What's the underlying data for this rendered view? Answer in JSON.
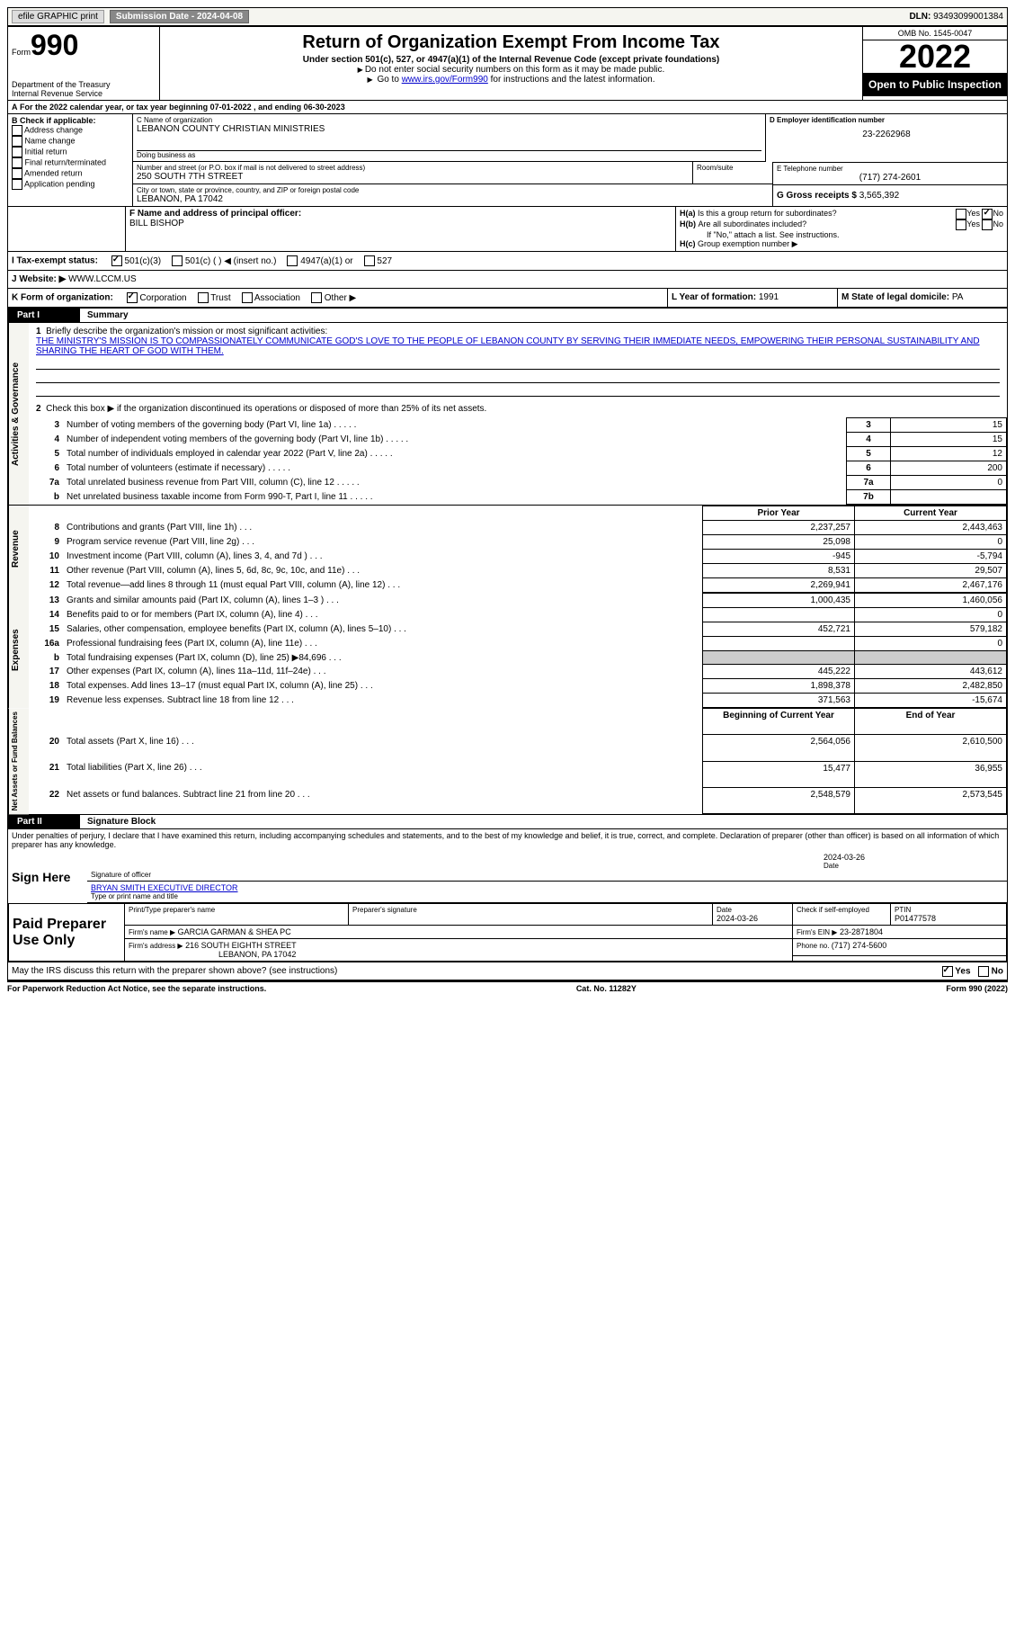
{
  "top_bar": {
    "efile": "efile GRAPHIC print",
    "submission_label": "Submission Date - ",
    "submission_date": "2024-04-08",
    "dln_label": "DLN: ",
    "dln": "93493099001384"
  },
  "header": {
    "form_word": "Form",
    "form_number": "990",
    "dept": "Department of the Treasury",
    "irs": "Internal Revenue Service",
    "title": "Return of Organization Exempt From Income Tax",
    "subtitle": "Under section 501(c), 527, or 4947(a)(1) of the Internal Revenue Code (except private foundations)",
    "note1": "Do not enter social security numbers on this form as it may be made public.",
    "note2_a": "Go to ",
    "note2_link": "www.irs.gov/Form990",
    "note2_b": " for instructions and the latest information.",
    "omb": "OMB No. 1545-0047",
    "year": "2022",
    "open": "Open to Public Inspection"
  },
  "period": {
    "line": "For the 2022 calendar year, or tax year beginning ",
    "begin": "07-01-2022",
    "mid": " , and ending ",
    "end": "06-30-2023"
  },
  "box_b": {
    "title": "B Check if applicable:",
    "items": [
      "Address change",
      "Name change",
      "Initial return",
      "Final return/terminated",
      "Amended return",
      "Application pending"
    ]
  },
  "box_c": {
    "name_label": "C Name of organization",
    "name": "LEBANON COUNTY CHRISTIAN MINISTRIES",
    "dba_label": "Doing business as",
    "street_label": "Number and street (or P.O. box if mail is not delivered to street address)",
    "room_label": "Room/suite",
    "street": "250 SOUTH 7TH STREET",
    "city_label": "City or town, state or province, country, and ZIP or foreign postal code",
    "city": "LEBANON, PA  17042"
  },
  "box_d": {
    "label": "D Employer identification number",
    "value": "23-2262968"
  },
  "box_e": {
    "label": "E Telephone number",
    "value": "(717) 274-2601"
  },
  "box_g": {
    "label": "G Gross receipts $ ",
    "value": "3,565,392"
  },
  "box_f": {
    "label": "F Name and address of principal officer:",
    "name": "BILL BISHOP"
  },
  "box_h": {
    "a": "Is this a group return for subordinates?",
    "b": "Are all subordinates included?",
    "b_note": "If \"No,\" attach a list. See instructions.",
    "c": "Group exemption number ▶",
    "yes": "Yes",
    "no": "No"
  },
  "box_i": {
    "label": "I   Tax-exempt status:",
    "opts": [
      "501(c)(3)",
      "501(c) (  ) ◀ (insert no.)",
      "4947(a)(1) or",
      "527"
    ]
  },
  "box_j": {
    "label": "J   Website: ▶",
    "value": "WWW.LCCM.US"
  },
  "box_k": {
    "label": "K Form of organization:",
    "opts": [
      "Corporation",
      "Trust",
      "Association",
      "Other ▶"
    ]
  },
  "box_l": {
    "label": "L Year of formation: ",
    "value": "1991"
  },
  "box_m": {
    "label": "M State of legal domicile: ",
    "value": "PA"
  },
  "part1": {
    "label": "Part I",
    "title": "Summary",
    "line1_label": "Briefly describe the organization's mission or most significant activities:",
    "line1_text": "THE MINISTRY'S MISSION IS TO COMPASSIONATELY COMMUNICATE GOD'S LOVE TO THE PEOPLE OF LEBANON COUNTY BY SERVING THEIR IMMEDIATE NEEDS, EMPOWERING THEIR PERSONAL SUSTAINABILITY AND SHARING THE HEART OF GOD WITH THEM.",
    "line2": "Check this box ▶     if the organization discontinued its operations or disposed of more than 25% of its net assets.",
    "tab_activities": "Activities & Governance",
    "tab_revenue": "Revenue",
    "tab_expenses": "Expenses",
    "tab_netassets": "Net Assets or Fund Balances",
    "rows_gov": [
      {
        "n": "3",
        "t": "Number of voting members of the governing body (Part VI, line 1a)",
        "box": "3",
        "v": "15"
      },
      {
        "n": "4",
        "t": "Number of independent voting members of the governing body (Part VI, line 1b)",
        "box": "4",
        "v": "15"
      },
      {
        "n": "5",
        "t": "Total number of individuals employed in calendar year 2022 (Part V, line 2a)",
        "box": "5",
        "v": "12"
      },
      {
        "n": "6",
        "t": "Total number of volunteers (estimate if necessary)",
        "box": "6",
        "v": "200"
      },
      {
        "n": "7a",
        "t": "Total unrelated business revenue from Part VIII, column (C), line 12",
        "box": "7a",
        "v": "0"
      },
      {
        "n": "b",
        "t": "Net unrelated business taxable income from Form 990-T, Part I, line 11",
        "box": "7b",
        "v": ""
      }
    ],
    "col_prior": "Prior Year",
    "col_current": "Current Year",
    "rows_rev": [
      {
        "n": "8",
        "t": "Contributions and grants (Part VIII, line 1h)",
        "p": "2,237,257",
        "c": "2,443,463"
      },
      {
        "n": "9",
        "t": "Program service revenue (Part VIII, line 2g)",
        "p": "25,098",
        "c": "0"
      },
      {
        "n": "10",
        "t": "Investment income (Part VIII, column (A), lines 3, 4, and 7d )",
        "p": "-945",
        "c": "-5,794"
      },
      {
        "n": "11",
        "t": "Other revenue (Part VIII, column (A), lines 5, 6d, 8c, 9c, 10c, and 11e)",
        "p": "8,531",
        "c": "29,507"
      },
      {
        "n": "12",
        "t": "Total revenue—add lines 8 through 11 (must equal Part VIII, column (A), line 12)",
        "p": "2,269,941",
        "c": "2,467,176"
      }
    ],
    "rows_exp": [
      {
        "n": "13",
        "t": "Grants and similar amounts paid (Part IX, column (A), lines 1–3 )",
        "p": "1,000,435",
        "c": "1,460,056"
      },
      {
        "n": "14",
        "t": "Benefits paid to or for members (Part IX, column (A), line 4)",
        "p": "",
        "c": "0"
      },
      {
        "n": "15",
        "t": "Salaries, other compensation, employee benefits (Part IX, column (A), lines 5–10)",
        "p": "452,721",
        "c": "579,182"
      },
      {
        "n": "16a",
        "t": "Professional fundraising fees (Part IX, column (A), line 11e)",
        "p": "",
        "c": "0"
      },
      {
        "n": "b",
        "t": "Total fundraising expenses (Part IX, column (D), line 25) ▶84,696",
        "p": "__gray__",
        "c": "__gray__"
      },
      {
        "n": "17",
        "t": "Other expenses (Part IX, column (A), lines 11a–11d, 11f–24e)",
        "p": "445,222",
        "c": "443,612"
      },
      {
        "n": "18",
        "t": "Total expenses. Add lines 13–17 (must equal Part IX, column (A), line 25)",
        "p": "1,898,378",
        "c": "2,482,850"
      },
      {
        "n": "19",
        "t": "Revenue less expenses. Subtract line 18 from line 12",
        "p": "371,563",
        "c": "-15,674"
      }
    ],
    "col_begin": "Beginning of Current Year",
    "col_end": "End of Year",
    "rows_net": [
      {
        "n": "20",
        "t": "Total assets (Part X, line 16)",
        "p": "2,564,056",
        "c": "2,610,500"
      },
      {
        "n": "21",
        "t": "Total liabilities (Part X, line 26)",
        "p": "15,477",
        "c": "36,955"
      },
      {
        "n": "22",
        "t": "Net assets or fund balances. Subtract line 21 from line 20",
        "p": "2,548,579",
        "c": "2,573,545"
      }
    ]
  },
  "part2": {
    "label": "Part II",
    "title": "Signature Block",
    "decl": "Under penalties of perjury, I declare that I have examined this return, including accompanying schedules and statements, and to the best of my knowledge and belief, it is true, correct, and complete. Declaration of preparer (other than officer) is based on all information of which preparer has any knowledge.",
    "sign_here": "Sign Here",
    "sig_officer": "Signature of officer",
    "sig_date": "2024-03-26",
    "date_label": "Date",
    "officer_name": "BRYAN SMITH  EXECUTIVE DIRECTOR",
    "type_name": "Type or print name and title",
    "paid": "Paid Preparer Use Only",
    "prep_name_label": "Print/Type preparer's name",
    "prep_sig_label": "Preparer's signature",
    "prep_date_label": "Date",
    "prep_date": "2024-03-26",
    "check_self": "Check      if self-employed",
    "ptin_label": "PTIN",
    "ptin": "P01477578",
    "firm_name_label": "Firm's name    ▶",
    "firm_name": "GARCIA GARMAN & SHEA PC",
    "firm_ein_label": "Firm's EIN ▶",
    "firm_ein": "23-2871804",
    "firm_addr_label": "Firm's address ▶",
    "firm_addr": "216 SOUTH EIGHTH STREET",
    "firm_city": "LEBANON, PA  17042",
    "firm_phone_label": "Phone no. ",
    "firm_phone": "(717) 274-5600",
    "discuss": "May the IRS discuss this return with the preparer shown above? (see instructions)"
  },
  "footer": {
    "paperwork": "For Paperwork Reduction Act Notice, see the separate instructions.",
    "cat": "Cat. No. 11282Y",
    "form": "Form 990 (2022)"
  }
}
